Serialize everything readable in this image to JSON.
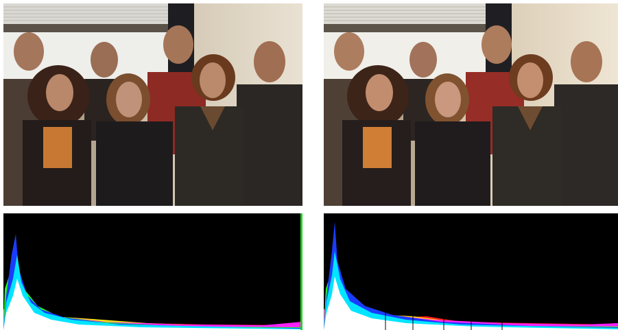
{
  "figure": {
    "panels": [
      {
        "kind": "photo",
        "variant": "original"
      },
      {
        "kind": "photo",
        "variant": "enhanced"
      },
      {
        "kind": "histogram",
        "variant": "original"
      },
      {
        "kind": "histogram",
        "variant": "enhanced"
      }
    ]
  },
  "colors": {
    "background": "#ffffff",
    "histogram_bg": "#000000",
    "histogram_white": "#ffffff",
    "histogram_cyan": "#00e5ff",
    "histogram_blue": "#1a3cff",
    "histogram_green": "#22ff22",
    "histogram_yellow": "#ffee00",
    "histogram_red": "#ff1a1a",
    "histogram_magenta": "#ff22ff"
  }
}
